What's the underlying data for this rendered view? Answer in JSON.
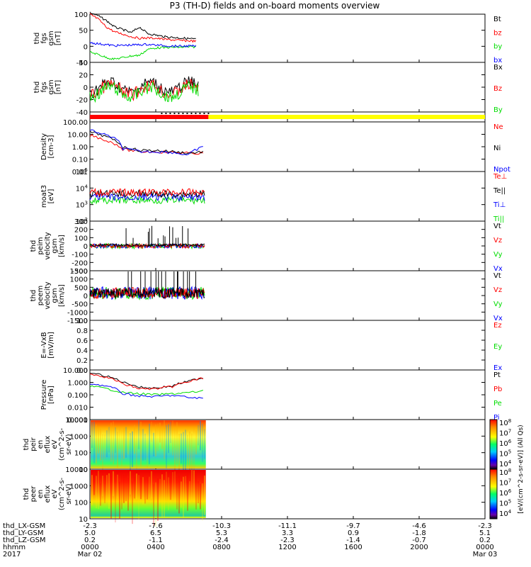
{
  "title": "P3 (TH-D) fields and on-board moments overview",
  "colors": {
    "black": "#000000",
    "red": "#ff0000",
    "green": "#00dd00",
    "blue": "#0000ff",
    "yellow": "#ffff00"
  },
  "colorbar_ticks": [
    "10^4",
    "10^5",
    "10^6",
    "10^7",
    "10^8"
  ],
  "colorbar_label": "[eV/(cm^2-s-sr-eV)] (All Qs)",
  "panels": [
    {
      "ylabel": [
        "thd",
        "fgs",
        "gsm",
        "[nT]"
      ],
      "yticks": [
        "100",
        "50",
        "0",
        "-50"
      ],
      "ylim": [
        -50,
        100
      ],
      "legend": [
        {
          "text": "Bt",
          "color": "black"
        },
        {
          "text": "bz",
          "color": "red"
        },
        {
          "text": "by",
          "color": "green"
        },
        {
          "text": "bx",
          "color": "blue"
        }
      ]
    },
    {
      "ylabel": [
        "thd",
        "fgs",
        "gsm",
        "[nT]"
      ],
      "yticks": [
        "40",
        "20",
        "0",
        "-20",
        "-40"
      ],
      "ylim": [
        -40,
        40
      ],
      "legend": [
        {
          "text": "Bx",
          "color": "black"
        },
        {
          "text": "Bz",
          "color": "red"
        },
        {
          "text": "By",
          "color": "green"
        }
      ]
    },
    {
      "ylabel": [],
      "yticks": [],
      "bar": true
    },
    {
      "ylabel": [
        "Density",
        "[cm-3]"
      ],
      "yticks": [
        "100.00",
        "10.00",
        "1.00",
        "0.10",
        "0.01"
      ],
      "log": true,
      "legend": [
        {
          "text": "Ne",
          "color": "red"
        },
        {
          "text": "Ni",
          "color": "black"
        },
        {
          "text": "Npot",
          "color": "blue"
        }
      ]
    },
    {
      "ylabel": [
        "moat3",
        "[eV]"
      ],
      "yticks": [
        "10^5",
        "10^4",
        "10^3",
        "10^2"
      ],
      "log": true,
      "legend": [
        {
          "text": "Te⊥",
          "color": "red"
        },
        {
          "text": "Te||",
          "color": "black"
        },
        {
          "text": "Ti⊥",
          "color": "blue"
        },
        {
          "text": "Ti||",
          "color": "green"
        }
      ]
    },
    {
      "ylabel": [
        "thd",
        "peim",
        "velocity",
        "gsm",
        "[km/s]"
      ],
      "yticks": [
        "300",
        "200",
        "100",
        "0",
        "-100",
        "-200",
        "-300"
      ],
      "ylim": [
        -300,
        300
      ],
      "legend": [
        {
          "text": "Vt",
          "color": "black"
        },
        {
          "text": "Vz",
          "color": "red"
        },
        {
          "text": "Vy",
          "color": "green"
        },
        {
          "text": "Vx",
          "color": "blue"
        }
      ]
    },
    {
      "ylabel": [
        "thd",
        "peem",
        "velocity",
        "gsm",
        "[km/s]"
      ],
      "yticks": [
        "1500",
        "1000",
        "500",
        "0",
        "-500",
        "-1000",
        "-1500"
      ],
      "ylim": [
        -1500,
        1500
      ],
      "legend": [
        {
          "text": "Vt",
          "color": "black"
        },
        {
          "text": "Vz",
          "color": "red"
        },
        {
          "text": "Vy",
          "color": "green"
        },
        {
          "text": "Vx",
          "color": "blue"
        }
      ]
    },
    {
      "ylabel": [
        "E=-VxB",
        "[mV/m]"
      ],
      "yticks": [
        "1.0",
        "0.8",
        "0.6",
        "0.4",
        "0.2",
        "0.0"
      ],
      "ylim": [
        0,
        1
      ],
      "legend": [
        {
          "text": "Ez",
          "color": "red"
        },
        {
          "text": "Ey",
          "color": "green"
        },
        {
          "text": "Ex",
          "color": "blue"
        }
      ]
    },
    {
      "ylabel": [
        "Pressure",
        "[nPa]"
      ],
      "yticks": [
        "10.000",
        "1.000",
        "0.100",
        "0.010",
        "0.001"
      ],
      "log": true,
      "legend": [
        {
          "text": "Pt",
          "color": "black"
        },
        {
          "text": "Pb",
          "color": "red"
        },
        {
          "text": "Pe",
          "color": "green"
        },
        {
          "text": "Pi",
          "color": "blue"
        }
      ]
    },
    {
      "ylabel": [
        "thd",
        "peir",
        "en",
        "eflux",
        "eV",
        "(cm^2-s-",
        "sr-eV)"
      ],
      "yticks": [
        "10000",
        "1000",
        "100",
        "10"
      ],
      "spectro": "ion"
    },
    {
      "ylabel": [
        "thd",
        "peer",
        "en",
        "eflux",
        "eV",
        "(cm^2-s-",
        "sr-eV)"
      ],
      "yticks": [
        "10000",
        "1000",
        "100",
        "10"
      ],
      "spectro": "electron"
    }
  ],
  "xaxis": {
    "rows": [
      {
        "label": "thd_LX-GSM",
        "values": [
          "-2.3",
          "-7.6",
          "-10.3",
          "-11.1",
          "-9.7",
          "-4.6",
          "-2.3"
        ]
      },
      {
        "label": "thd_LY-GSM",
        "values": [
          "5.0",
          "6.5",
          "5.3",
          "3.3",
          "0.9",
          "-1.8",
          "5.1"
        ]
      },
      {
        "label": "thd_LZ-GSM",
        "values": [
          "0.2",
          "-1.1",
          "-2.4",
          "-2.3",
          "-1.4",
          "-0.7",
          "0.2"
        ]
      },
      {
        "label": "hhmm",
        "values": [
          "0000",
          "0400",
          "0800",
          "1200",
          "1600",
          "2000",
          "0000"
        ]
      },
      {
        "label": "2017",
        "values": [
          "Mar 02",
          "",
          "",
          "",
          "",
          "",
          "Mar 03"
        ]
      }
    ]
  },
  "chart_data": {
    "type": "line",
    "title": "P3 (TH-D) fields and on-board moments overview",
    "x": [
      "0000",
      "0400",
      "0800",
      "1200",
      "1600",
      "2000",
      "0000"
    ],
    "xlabel": "hhmm",
    "data_extent_hhmm": [
      "0000",
      "0700"
    ],
    "series": [
      {
        "name": "Bt",
        "panel": 1,
        "x": [
          0,
          0.5,
          1,
          1.5,
          2,
          2.5,
          3,
          3.5,
          4,
          4.5,
          5,
          5.5,
          6,
          6.5
        ],
        "values": [
          105,
          95,
          80,
          60,
          52,
          42,
          60,
          40,
          35,
          30,
          28,
          26,
          24,
          22
        ]
      },
      {
        "name": "bz",
        "panel": 1,
        "x": [
          0,
          0.5,
          1,
          1.5,
          2,
          2.5,
          3,
          3.5,
          4,
          4.5,
          5,
          5.5,
          6,
          6.5
        ],
        "values": [
          100,
          85,
          60,
          45,
          38,
          30,
          25,
          26,
          25,
          22,
          20,
          18,
          17,
          16
        ]
      },
      {
        "name": "by",
        "panel": 1,
        "x": [
          0,
          0.5,
          1,
          1.5,
          2,
          2.5,
          3,
          3.5,
          4,
          4.5,
          5,
          5.5,
          6,
          6.5
        ],
        "values": [
          -18,
          -25,
          -35,
          -40,
          -35,
          -30,
          -28,
          -10,
          -5,
          -4,
          -3,
          -3,
          -2,
          -2
        ]
      },
      {
        "name": "bx",
        "panel": 1,
        "x": [
          0,
          0.5,
          1,
          1.5,
          2,
          2.5,
          3,
          3.5,
          4,
          4.5,
          5,
          5.5,
          6,
          6.5
        ],
        "values": [
          12,
          8,
          5,
          2,
          3,
          4,
          5,
          6,
          4,
          2,
          1,
          0,
          1,
          0
        ]
      },
      {
        "name": "Ne",
        "panel": 4,
        "x": [
          0,
          1,
          2,
          3,
          4,
          5,
          6,
          7
        ],
        "values": [
          8,
          3,
          0.6,
          0.4,
          0.4,
          0.35,
          0.3,
          0.3
        ]
      },
      {
        "name": "Ni",
        "panel": 4,
        "x": [
          0,
          1,
          2,
          3,
          4,
          5,
          6,
          7
        ],
        "values": [
          15,
          6,
          0.9,
          0.5,
          0.5,
          0.4,
          0.3,
          0.4
        ]
      },
      {
        "name": "Npot",
        "panel": 4,
        "x": [
          0,
          1,
          2,
          3,
          4,
          5,
          6,
          7
        ],
        "values": [
          20,
          8,
          0.7,
          0.4,
          0.4,
          0.35,
          0.2,
          1.0
        ]
      },
      {
        "name": "Pt",
        "panel": 9,
        "x": [
          0,
          1,
          2,
          3,
          4,
          5,
          6,
          7
        ],
        "values": [
          6,
          3,
          1.0,
          0.4,
          0.35,
          0.5,
          1.2,
          2.5
        ]
      },
      {
        "name": "Pb",
        "panel": 9,
        "x": [
          0,
          1,
          2,
          3,
          4,
          5,
          6,
          7
        ],
        "values": [
          5,
          2.5,
          0.7,
          0.3,
          0.3,
          0.45,
          1.1,
          2.3
        ]
      },
      {
        "name": "Pe",
        "panel": 9,
        "x": [
          0,
          1,
          2,
          3,
          4,
          5,
          6,
          7
        ],
        "values": [
          0.5,
          0.3,
          0.15,
          0.12,
          0.1,
          0.12,
          0.15,
          0.2
        ]
      },
      {
        "name": "Pi",
        "panel": 9,
        "x": [
          0,
          1,
          2,
          3,
          4,
          5,
          6,
          7
        ],
        "values": [
          0.8,
          0.5,
          0.12,
          0.08,
          0.07,
          0.09,
          0.06,
          0.05
        ]
      }
    ]
  }
}
